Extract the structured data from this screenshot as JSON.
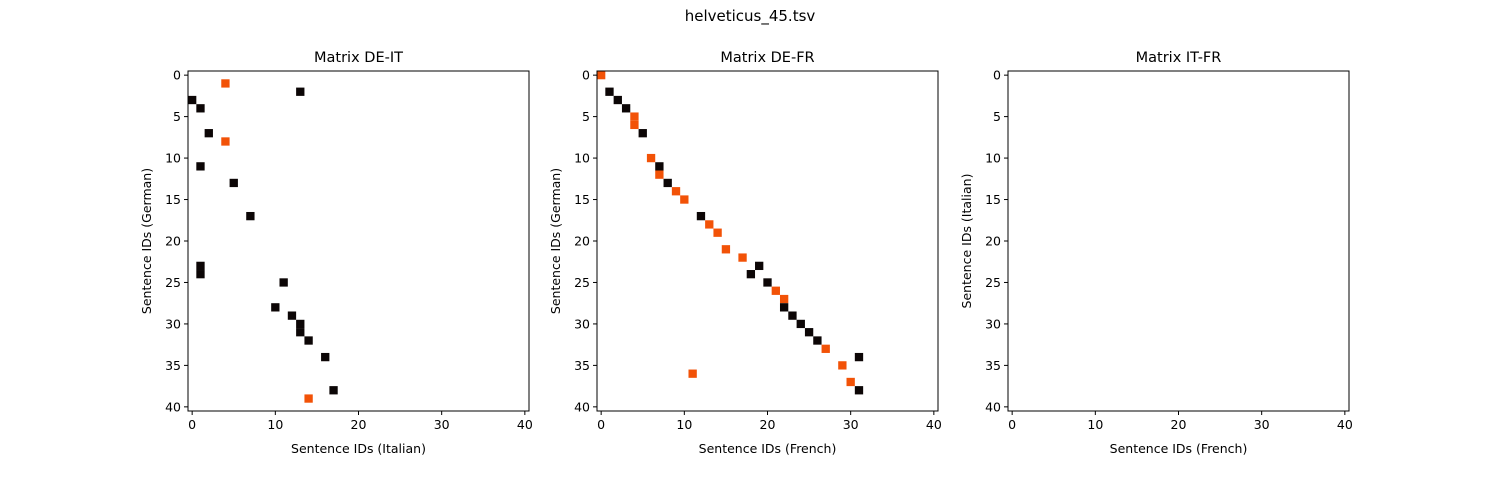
{
  "figure": {
    "suptitle": "helveticus_45.tsv"
  },
  "colors": {
    "black": "#0c0606",
    "orange": "#f25207",
    "axis": "#000000"
  },
  "chart_data": [
    {
      "type": "heatmap",
      "title": "Matrix DE-IT",
      "xlabel": "Sentence IDs (Italian)",
      "ylabel": "Sentence IDs (German)",
      "xlim": [
        -0.5,
        40.5
      ],
      "ylim": [
        40.5,
        -0.5
      ],
      "xticks": [
        0,
        10,
        20,
        30,
        40
      ],
      "yticks": [
        0,
        5,
        10,
        15,
        20,
        25,
        30,
        35,
        40
      ],
      "grid": false,
      "cells": [
        {
          "x": 4,
          "y": 1,
          "c": "orange"
        },
        {
          "x": 13,
          "y": 2,
          "c": "black"
        },
        {
          "x": 0,
          "y": 3,
          "c": "black"
        },
        {
          "x": 1,
          "y": 4,
          "c": "black"
        },
        {
          "x": 2,
          "y": 7,
          "c": "black"
        },
        {
          "x": 4,
          "y": 8,
          "c": "orange"
        },
        {
          "x": 1,
          "y": 11,
          "c": "black"
        },
        {
          "x": 5,
          "y": 13,
          "c": "black"
        },
        {
          "x": 7,
          "y": 17,
          "c": "black"
        },
        {
          "x": 1,
          "y": 23,
          "c": "black"
        },
        {
          "x": 1,
          "y": 24,
          "c": "black"
        },
        {
          "x": 11,
          "y": 25,
          "c": "black"
        },
        {
          "x": 10,
          "y": 28,
          "c": "black"
        },
        {
          "x": 12,
          "y": 29,
          "c": "black"
        },
        {
          "x": 13,
          "y": 30,
          "c": "black"
        },
        {
          "x": 13,
          "y": 31,
          "c": "black"
        },
        {
          "x": 14,
          "y": 32,
          "c": "black"
        },
        {
          "x": 16,
          "y": 34,
          "c": "black"
        },
        {
          "x": 17,
          "y": 38,
          "c": "black"
        },
        {
          "x": 14,
          "y": 39,
          "c": "orange"
        }
      ]
    },
    {
      "type": "heatmap",
      "title": "Matrix DE-FR",
      "xlabel": "Sentence IDs (French)",
      "ylabel": "Sentence IDs (German)",
      "xlim": [
        -0.5,
        40.5
      ],
      "ylim": [
        40.5,
        -0.5
      ],
      "xticks": [
        0,
        10,
        20,
        30,
        40
      ],
      "yticks": [
        0,
        5,
        10,
        15,
        20,
        25,
        30,
        35,
        40
      ],
      "grid": false,
      "cells": [
        {
          "x": 0,
          "y": 0,
          "c": "orange"
        },
        {
          "x": 1,
          "y": 2,
          "c": "black"
        },
        {
          "x": 2,
          "y": 3,
          "c": "black"
        },
        {
          "x": 3,
          "y": 4,
          "c": "black"
        },
        {
          "x": 4,
          "y": 5,
          "c": "orange"
        },
        {
          "x": 4,
          "y": 6,
          "c": "orange"
        },
        {
          "x": 5,
          "y": 7,
          "c": "black"
        },
        {
          "x": 6,
          "y": 10,
          "c": "orange"
        },
        {
          "x": 7,
          "y": 11,
          "c": "black"
        },
        {
          "x": 7,
          "y": 12,
          "c": "orange"
        },
        {
          "x": 8,
          "y": 13,
          "c": "black"
        },
        {
          "x": 9,
          "y": 14,
          "c": "orange"
        },
        {
          "x": 10,
          "y": 15,
          "c": "orange"
        },
        {
          "x": 12,
          "y": 17,
          "c": "black"
        },
        {
          "x": 13,
          "y": 18,
          "c": "orange"
        },
        {
          "x": 14,
          "y": 19,
          "c": "orange"
        },
        {
          "x": 15,
          "y": 21,
          "c": "orange"
        },
        {
          "x": 17,
          "y": 22,
          "c": "orange"
        },
        {
          "x": 19,
          "y": 23,
          "c": "black"
        },
        {
          "x": 18,
          "y": 24,
          "c": "black"
        },
        {
          "x": 20,
          "y": 25,
          "c": "black"
        },
        {
          "x": 21,
          "y": 26,
          "c": "orange"
        },
        {
          "x": 22,
          "y": 27,
          "c": "orange"
        },
        {
          "x": 22,
          "y": 28,
          "c": "black"
        },
        {
          "x": 23,
          "y": 29,
          "c": "black"
        },
        {
          "x": 24,
          "y": 30,
          "c": "black"
        },
        {
          "x": 25,
          "y": 31,
          "c": "black"
        },
        {
          "x": 26,
          "y": 32,
          "c": "black"
        },
        {
          "x": 27,
          "y": 33,
          "c": "orange"
        },
        {
          "x": 31,
          "y": 34,
          "c": "black"
        },
        {
          "x": 29,
          "y": 35,
          "c": "orange"
        },
        {
          "x": 11,
          "y": 36,
          "c": "orange"
        },
        {
          "x": 30,
          "y": 37,
          "c": "orange"
        },
        {
          "x": 31,
          "y": 38,
          "c": "black"
        }
      ]
    },
    {
      "type": "heatmap",
      "title": "Matrix IT-FR",
      "xlabel": "Sentence IDs (French)",
      "ylabel": "Sentence IDs (Italian)",
      "xlim": [
        -0.5,
        40.5
      ],
      "ylim": [
        40.5,
        -0.5
      ],
      "xticks": [
        0,
        10,
        20,
        30,
        40
      ],
      "yticks": [
        0,
        5,
        10,
        15,
        20,
        25,
        30,
        35,
        40
      ],
      "grid": false,
      "cells": []
    }
  ]
}
